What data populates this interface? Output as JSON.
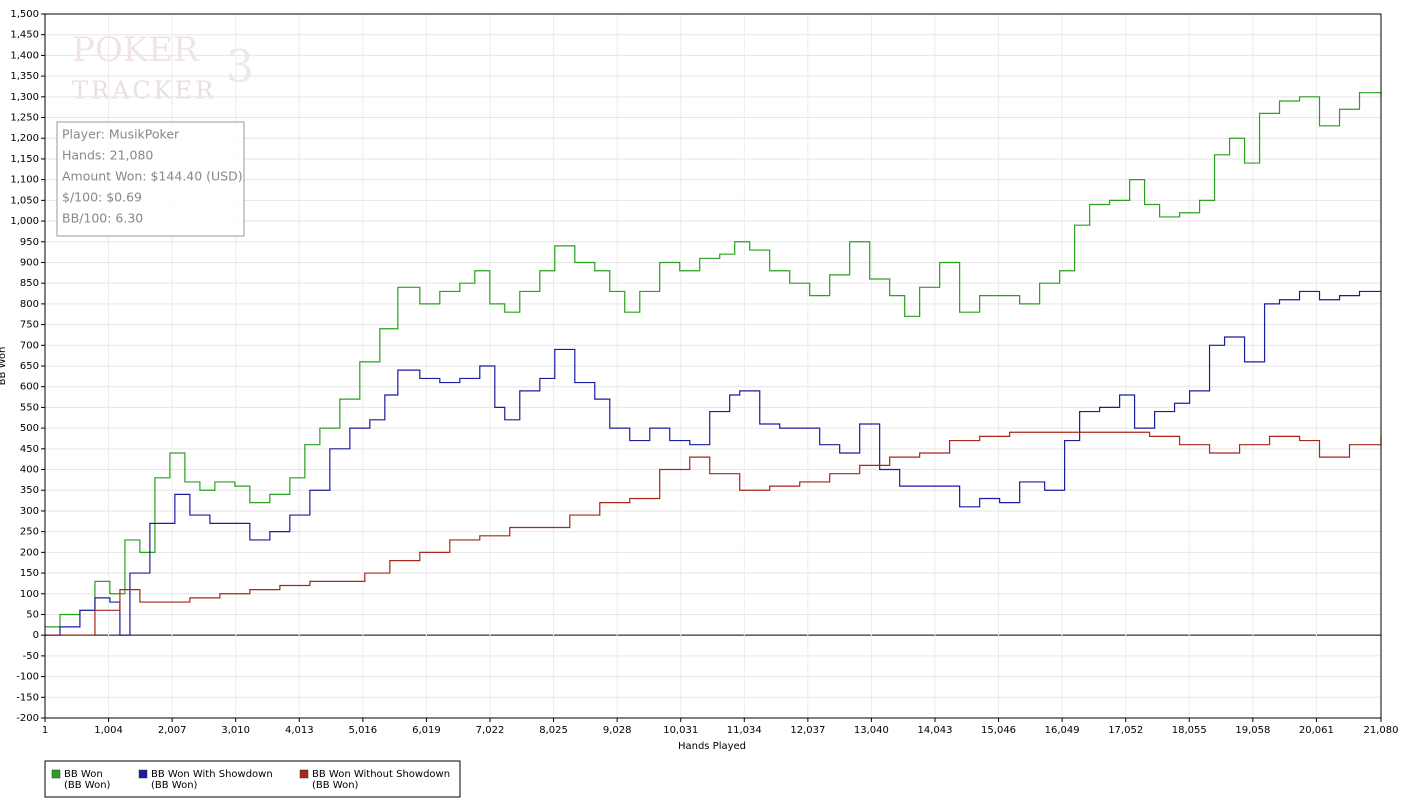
{
  "chart_data": {
    "type": "line",
    "x_label": "Hands Played",
    "y_label": "BB Won",
    "watermark": [
      "POKER",
      "TRACKER",
      "3"
    ],
    "info": [
      "Player: MusikPoker",
      "Hands: 21,080",
      "Amount Won: $144.40 (USD)",
      "$/100: $0.69",
      "BB/100: 6.30"
    ],
    "xlim": [
      1,
      21080
    ],
    "ylim": [
      -200,
      1500
    ],
    "grid": true,
    "xticks": [
      1,
      {
        "value": 1004,
        "label": "1,004"
      },
      {
        "value": 2007,
        "label": "2,007"
      },
      {
        "value": 3010,
        "label": "3,010"
      },
      {
        "value": 4013,
        "label": "4,013"
      },
      {
        "value": 5016,
        "label": "5,016"
      },
      {
        "value": 6019,
        "label": "6,019"
      },
      {
        "value": 7022,
        "label": "7,022"
      },
      {
        "value": 8025,
        "label": "8,025"
      },
      {
        "value": 9028,
        "label": "9,028"
      },
      {
        "value": 10031,
        "label": "10,031"
      },
      {
        "value": 11034,
        "label": "11,034"
      },
      {
        "value": 12037,
        "label": "12,037"
      },
      {
        "value": 13040,
        "label": "13,040"
      },
      {
        "value": 14043,
        "label": "14,043"
      },
      {
        "value": 15046,
        "label": "15,046"
      },
      {
        "value": 16049,
        "label": "16,049"
      },
      {
        "value": 17052,
        "label": "17,052"
      },
      {
        "value": 18055,
        "label": "18,055"
      },
      {
        "value": 19058,
        "label": "19,058"
      },
      {
        "value": 20061,
        "label": "20,061"
      },
      {
        "value": 21080,
        "label": "21,080"
      }
    ],
    "yticks": [
      -200,
      -150,
      -100,
      -50,
      0,
      50,
      100,
      150,
      200,
      250,
      300,
      350,
      400,
      450,
      500,
      550,
      600,
      650,
      700,
      750,
      800,
      850,
      900,
      950,
      {
        "value": 1000,
        "label": "1,000"
      },
      {
        "value": 1050,
        "label": "1,050"
      },
      {
        "value": 1100,
        "label": "1,100"
      },
      {
        "value": 1150,
        "label": "1,150"
      },
      {
        "value": 1200,
        "label": "1,200"
      },
      {
        "value": 1250,
        "label": "1,250"
      },
      {
        "value": 1300,
        "label": "1,300"
      },
      {
        "value": 1350,
        "label": "1,350"
      },
      {
        "value": 1400,
        "label": "1,400"
      },
      {
        "value": 1450,
        "label": "1,450"
      },
      {
        "value": 1500,
        "label": "1,500"
      }
    ],
    "series": [
      {
        "name": "BB Won",
        "unit": "(BB Won)",
        "color": "#2aa01e",
        "x": [
          1,
          237,
          552,
          789,
          1025,
          1262,
          1498,
          1735,
          1972,
          2208,
          2445,
          2681,
          2997,
          3233,
          3549,
          3864,
          4101,
          4338,
          4653,
          4968,
          5284,
          5568,
          5915,
          6230,
          6546,
          6782,
          7019,
          7255,
          7492,
          7808,
          8044,
          8360,
          8675,
          8912,
          9148,
          9385,
          9700,
          10016,
          10331,
          10647,
          10883,
          11120,
          11435,
          11751,
          12066,
          12382,
          12697,
          13013,
          13328,
          13565,
          13801,
          14117,
          14432,
          14748,
          15063,
          15379,
          15694,
          16010,
          16246,
          16483,
          16798,
          17114,
          17350,
          17587,
          17902,
          18218,
          18454,
          18691,
          18927,
          19164,
          19479,
          19795,
          20110,
          20426,
          20741,
          21080
        ],
        "values": [
          20,
          50,
          60,
          130,
          100,
          230,
          200,
          380,
          440,
          370,
          350,
          370,
          360,
          320,
          340,
          380,
          460,
          500,
          570,
          660,
          740,
          840,
          800,
          830,
          850,
          880,
          800,
          780,
          830,
          880,
          940,
          900,
          880,
          830,
          780,
          830,
          900,
          880,
          910,
          920,
          950,
          930,
          880,
          850,
          820,
          870,
          950,
          860,
          820,
          770,
          840,
          900,
          780,
          820,
          820,
          800,
          850,
          880,
          990,
          1040,
          1050,
          1100,
          1040,
          1010,
          1020,
          1050,
          1160,
          1200,
          1140,
          1260,
          1290,
          1300,
          1230,
          1270,
          1310,
          1300
        ]
      },
      {
        "name": "BB Won With Showdown",
        "unit": "(BB Won)",
        "color": "#1c1ca0",
        "x": [
          1,
          237,
          552,
          789,
          1025,
          1183,
          1341,
          1656,
          2050,
          2287,
          2603,
          2918,
          3233,
          3549,
          3864,
          4180,
          4495,
          4811,
          5126,
          5363,
          5568,
          5915,
          6230,
          6546,
          6861,
          7098,
          7255,
          7492,
          7808,
          8044,
          8360,
          8675,
          8912,
          9227,
          9543,
          9858,
          10174,
          10489,
          10804,
          10962,
          11278,
          11593,
          11909,
          12224,
          12539,
          12855,
          13170,
          13486,
          13801,
          14274,
          14432,
          14748,
          15063,
          15379,
          15773,
          16088,
          16325,
          16640,
          16956,
          17192,
          17508,
          17823,
          18060,
          18375,
          18612,
          18927,
          19243,
          19479,
          19795,
          20110,
          20426,
          20741,
          21080
        ],
        "values": [
          0,
          20,
          60,
          90,
          80,
          0,
          150,
          270,
          340,
          290,
          270,
          270,
          230,
          250,
          290,
          350,
          450,
          500,
          520,
          580,
          640,
          620,
          610,
          620,
          650,
          550,
          520,
          590,
          620,
          690,
          610,
          570,
          500,
          470,
          500,
          470,
          460,
          540,
          580,
          590,
          510,
          500,
          500,
          460,
          440,
          510,
          400,
          360,
          360,
          360,
          310,
          330,
          320,
          370,
          350,
          470,
          540,
          550,
          580,
          500,
          540,
          560,
          590,
          700,
          720,
          660,
          800,
          810,
          830,
          810,
          820,
          830,
          830
        ]
      },
      {
        "name": "BB Won Without Showdown",
        "unit": "(BB Won)",
        "color": "#a8261a",
        "x": [
          1,
          552,
          789,
          1183,
          1498,
          1814,
          2287,
          2760,
          3233,
          3707,
          4180,
          4653,
          5047,
          5442,
          5915,
          6388,
          6861,
          7334,
          7808,
          8281,
          8754,
          9227,
          9700,
          10174,
          10489,
          10962,
          11435,
          11909,
          12382,
          12855,
          13328,
          13801,
          14274,
          14748,
          15221,
          15852,
          16325,
          16956,
          17429,
          17902,
          18375,
          18849,
          19322,
          19795,
          20110,
          20583,
          21080
        ],
        "values": [
          0,
          0,
          60,
          110,
          80,
          80,
          90,
          100,
          110,
          120,
          130,
          130,
          150,
          180,
          200,
          230,
          240,
          260,
          260,
          290,
          320,
          330,
          400,
          430,
          390,
          350,
          360,
          370,
          390,
          410,
          430,
          440,
          470,
          480,
          490,
          490,
          490,
          490,
          480,
          460,
          440,
          460,
          480,
          470,
          430,
          460,
          480
        ]
      }
    ]
  }
}
